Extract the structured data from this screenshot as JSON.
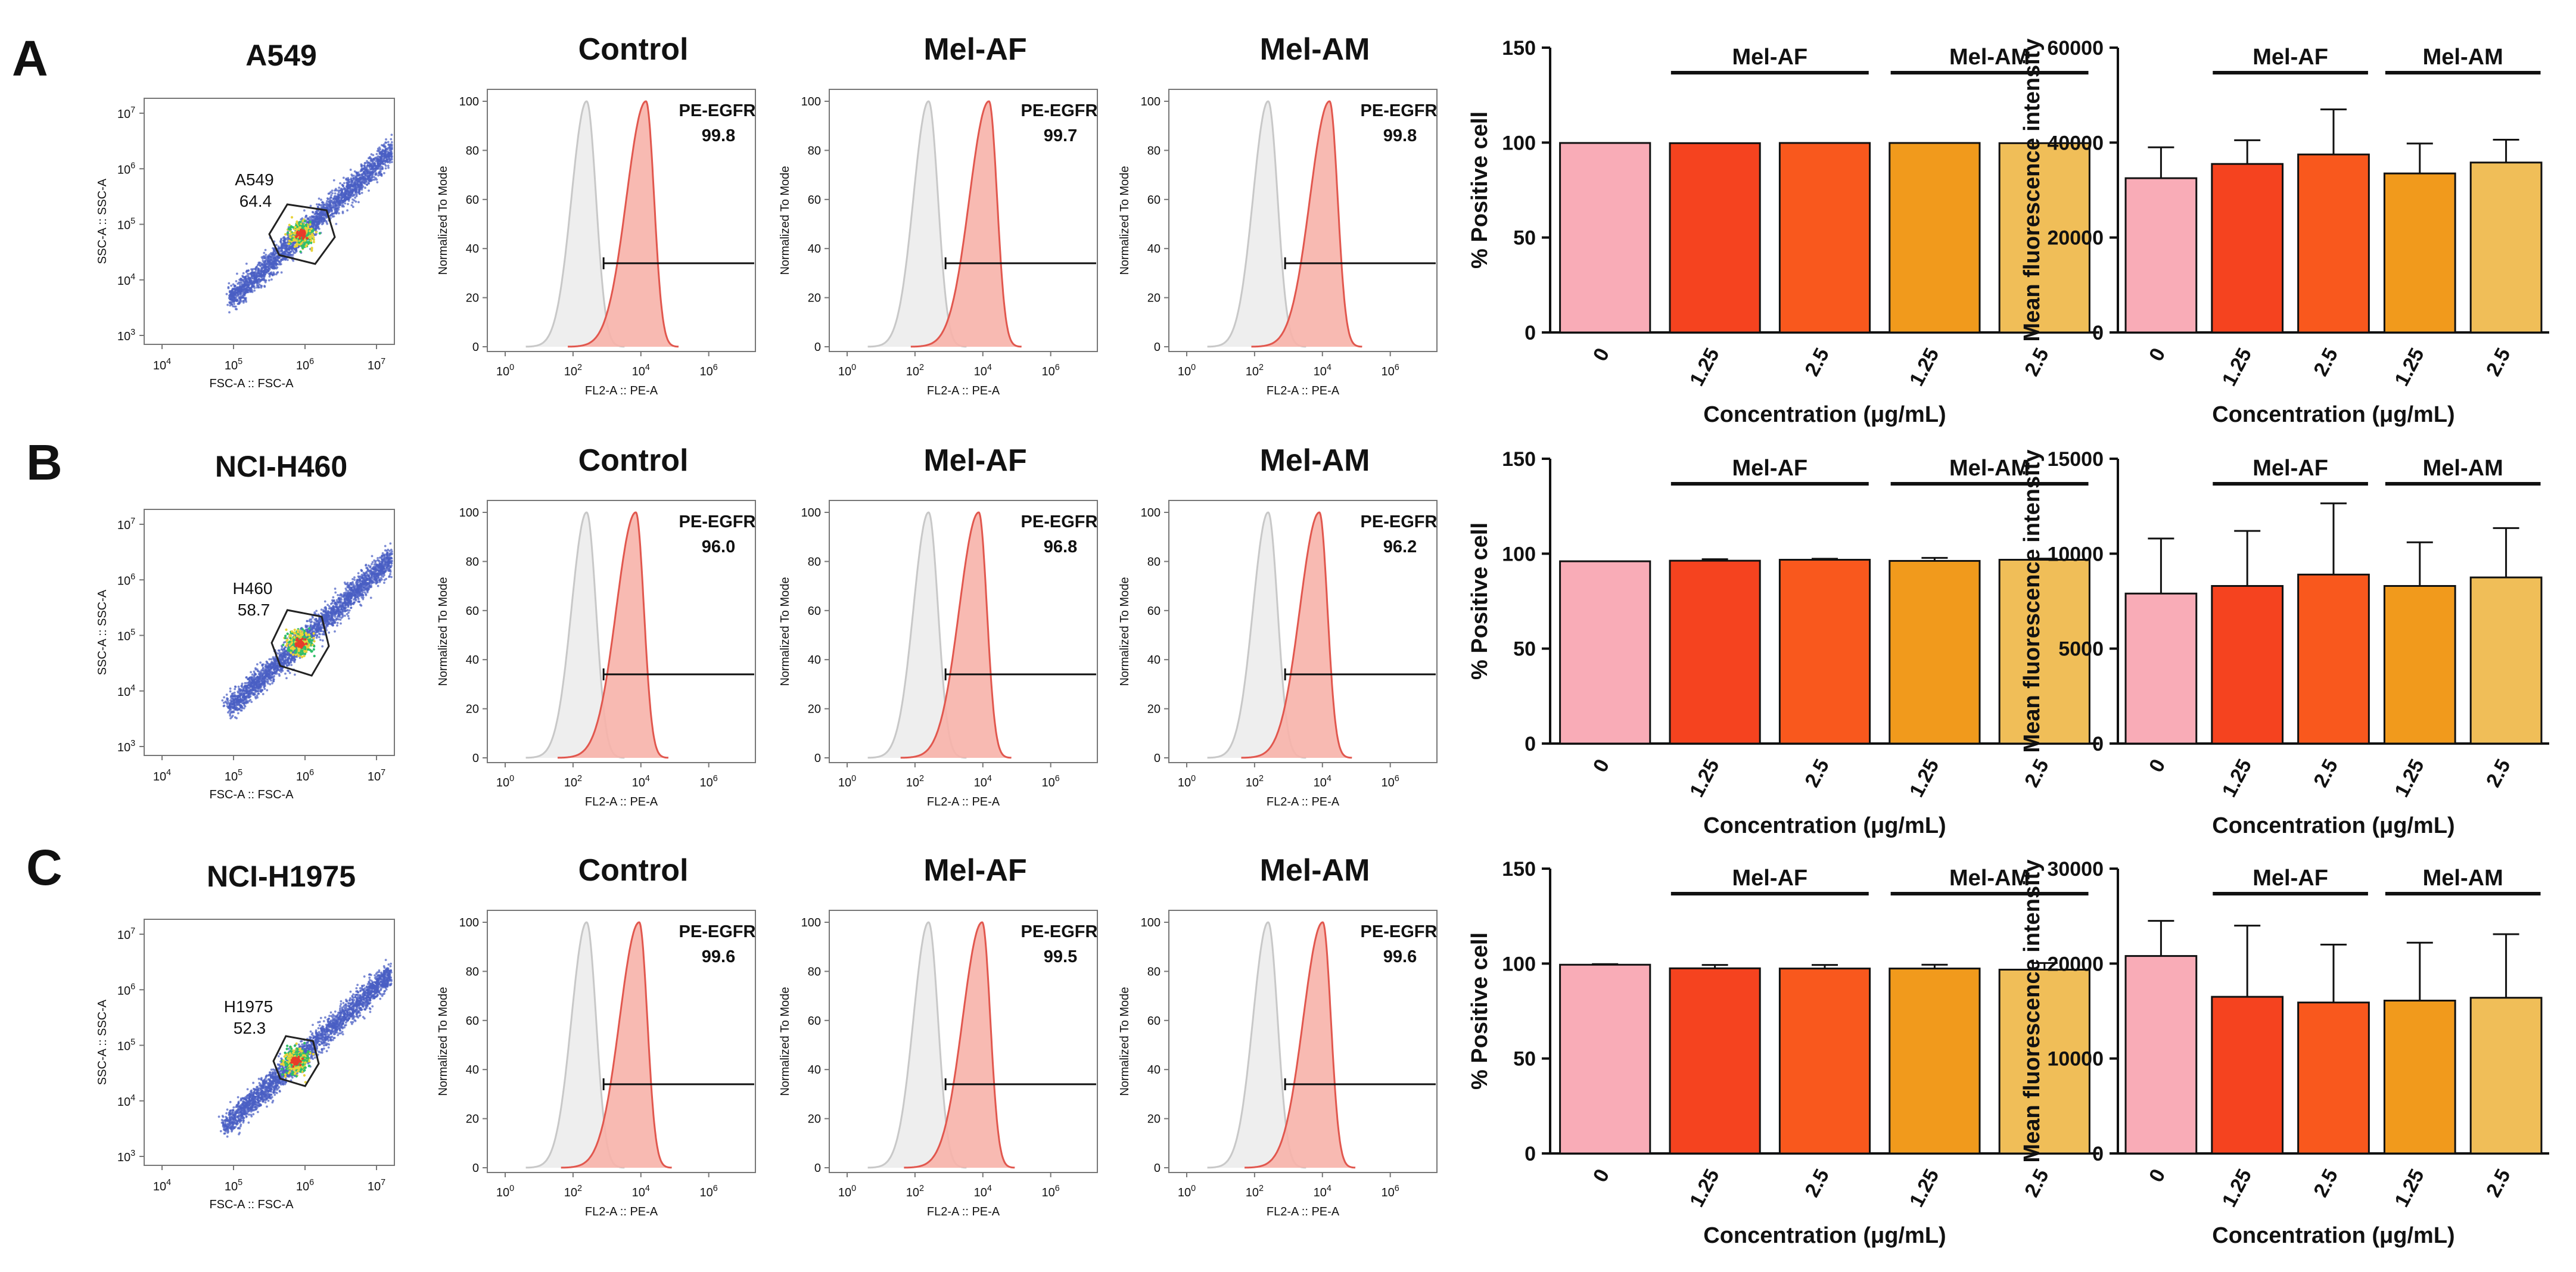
{
  "rows": [
    {
      "letter": "A",
      "cell_line": "A549",
      "gate_label": "A549",
      "gate_percent": "64.4",
      "histograms": [
        {
          "title": "Control",
          "marker": "PE-EGFR",
          "percent": "99.8"
        },
        {
          "title": "Mel-AF",
          "marker": "PE-EGFR",
          "percent": "99.7"
        },
        {
          "title": "Mel-AM",
          "marker": "PE-EGFR",
          "percent": "99.8"
        }
      ]
    },
    {
      "letter": "B",
      "cell_line": "NCI-H460",
      "gate_label": "H460",
      "gate_percent": "58.7",
      "histograms": [
        {
          "title": "Control",
          "marker": "PE-EGFR",
          "percent": "96.0"
        },
        {
          "title": "Mel-AF",
          "marker": "PE-EGFR",
          "percent": "96.8"
        },
        {
          "title": "Mel-AM",
          "marker": "PE-EGFR",
          "percent": "96.2"
        }
      ]
    },
    {
      "letter": "C",
      "cell_line": "NCI-H1975",
      "gate_label": "H1975",
      "gate_percent": "52.3",
      "histograms": [
        {
          "title": "Control",
          "marker": "PE-EGFR",
          "percent": "99.6"
        },
        {
          "title": "Mel-AF",
          "marker": "PE-EGFR",
          "percent": "99.5"
        },
        {
          "title": "Mel-AM",
          "marker": "PE-EGFR",
          "percent": "99.6"
        }
      ]
    }
  ],
  "scatter_axes": {
    "xlabel": "FSC-A :: FSC-A",
    "ylabel": "SSC-A :: SSC-A",
    "xticks": [
      "10^4",
      "10^5",
      "10^6",
      "10^7"
    ],
    "yticks": [
      "10^3",
      "10^4",
      "10^5",
      "10^6",
      "10^7"
    ]
  },
  "hist_axes": {
    "xlabel": "FL2-A :: PE-A",
    "ylabel": "Normalized To Mode",
    "xticks": [
      "10^0",
      "10^2",
      "10^4",
      "10^6"
    ],
    "yticks": [
      "0",
      "20",
      "40",
      "60",
      "80",
      "100"
    ]
  },
  "bar_legend_groups": [
    "Mel-AF",
    "Mel-AM"
  ],
  "colors": {
    "bars": [
      "#f9acb7",
      "#f5431f",
      "#f9581d",
      "#f19a1c",
      "#f0be58"
    ],
    "hist_fill": "#f7b2aa",
    "hist_line": "#e1574e",
    "control_line": "#c8c8c8",
    "control_fill": "#eeeeee"
  },
  "chart_data": [
    {
      "type": "bar",
      "row": "A",
      "title": "",
      "xlabel": "Concentration (μg/mL)",
      "ylabel": "% Positive cell",
      "categories": [
        "0",
        "1.25",
        "2.5",
        "1.25",
        "2.5"
      ],
      "values": [
        99.8,
        99.7,
        99.8,
        99.8,
        99.7
      ],
      "errors": [
        0,
        0,
        0,
        0,
        0
      ],
      "ylim": [
        0,
        150
      ],
      "yticks": [
        0,
        50,
        100,
        150
      ]
    },
    {
      "type": "bar",
      "row": "A",
      "title": "",
      "xlabel": "Concentration (μg/mL)",
      "ylabel": "Mean fluorescence intensity",
      "categories": [
        "0",
        "1.25",
        "2.5",
        "1.25",
        "2.5"
      ],
      "values": [
        32500,
        35500,
        37500,
        33500,
        35800
      ],
      "errors": [
        6500,
        5000,
        9500,
        6300,
        4800
      ],
      "ylim": [
        0,
        60000
      ],
      "yticks": [
        0,
        20000,
        40000,
        60000
      ]
    },
    {
      "type": "bar",
      "row": "B",
      "title": "",
      "xlabel": "Concentration (μg/mL)",
      "ylabel": "% Positive cell",
      "categories": [
        "0",
        "1.25",
        "2.5",
        "1.25",
        "2.5"
      ],
      "values": [
        96.0,
        96.3,
        96.8,
        96.2,
        96.8
      ],
      "errors": [
        0,
        0.8,
        0.5,
        1.6,
        0.6
      ],
      "ylim": [
        0,
        150
      ],
      "yticks": [
        0,
        50,
        100,
        150
      ]
    },
    {
      "type": "bar",
      "row": "B",
      "title": "",
      "xlabel": "Concentration (μg/mL)",
      "ylabel": "Mean fluorescence intensity",
      "categories": [
        "0",
        "1.25",
        "2.5",
        "1.25",
        "2.5"
      ],
      "values": [
        7900,
        8300,
        8900,
        8300,
        8750
      ],
      "errors": [
        2900,
        2900,
        3750,
        2300,
        2600
      ],
      "ylim": [
        0,
        15000
      ],
      "yticks": [
        0,
        5000,
        10000,
        15000
      ]
    },
    {
      "type": "bar",
      "row": "C",
      "title": "",
      "xlabel": "Concentration (μg/mL)",
      "ylabel": "% Positive cell",
      "categories": [
        "0",
        "1.25",
        "2.5",
        "1.25",
        "2.5"
      ],
      "values": [
        99.4,
        97.5,
        97.4,
        97.4,
        96.8
      ],
      "errors": [
        0.3,
        1.8,
        1.9,
        2.0,
        3.5
      ],
      "ylim": [
        0,
        150
      ],
      "yticks": [
        0,
        50,
        100,
        150
      ]
    },
    {
      "type": "bar",
      "row": "C",
      "title": "",
      "xlabel": "Concentration (μg/mL)",
      "ylabel": "Mean fluorescence intensity",
      "categories": [
        "0",
        "1.25",
        "2.5",
        "1.25",
        "2.5"
      ],
      "values": [
        20800,
        16500,
        15900,
        16100,
        16400
      ],
      "errors": [
        3700,
        7500,
        6100,
        6100,
        6700
      ],
      "ylim": [
        0,
        30000
      ],
      "yticks": [
        0,
        10000,
        20000,
        30000
      ]
    }
  ]
}
